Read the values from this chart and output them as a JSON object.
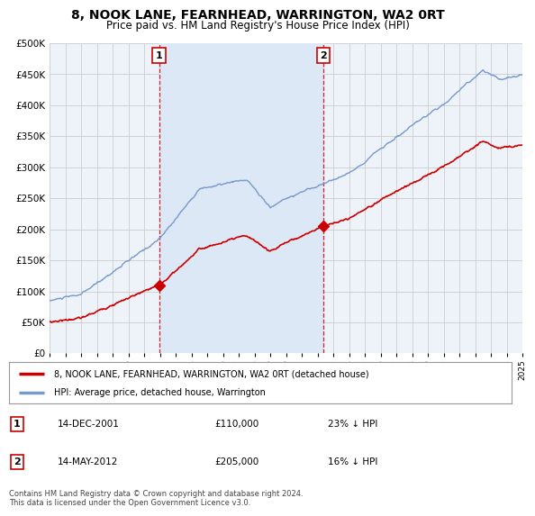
{
  "title": "8, NOOK LANE, FEARNHEAD, WARRINGTON, WA2 0RT",
  "subtitle": "Price paid vs. HM Land Registry's House Price Index (HPI)",
  "legend_line1": "8, NOOK LANE, FEARNHEAD, WARRINGTON, WA2 0RT (detached house)",
  "legend_line2": "HPI: Average price, detached house, Warrington",
  "footnote": "Contains HM Land Registry data © Crown copyright and database right 2024.\nThis data is licensed under the Open Government Licence v3.0.",
  "table": [
    {
      "num": "1",
      "date": "14-DEC-2001",
      "price": "£110,000",
      "pct": "23% ↓ HPI"
    },
    {
      "num": "2",
      "date": "14-MAY-2012",
      "price": "£205,000",
      "pct": "16% ↓ HPI"
    }
  ],
  "price_line_color": "#cc0000",
  "hpi_line_color": "#7799cc",
  "vline_color": "#cc0000",
  "shade_color": "#dce8f5",
  "grid_color": "#cccccc",
  "bg_color": "#ffffff",
  "plot_bg_color": "#eef3fa",
  "ylim": [
    0,
    500000
  ],
  "yticks": [
    0,
    50000,
    100000,
    150000,
    200000,
    250000,
    300000,
    350000,
    400000,
    450000,
    500000
  ],
  "xstart": 1995,
  "xend": 2025,
  "sale_years": [
    2001.95,
    2012.37
  ],
  "sale_prices": [
    110000,
    205000
  ],
  "sale_labels": [
    "1",
    "2"
  ]
}
